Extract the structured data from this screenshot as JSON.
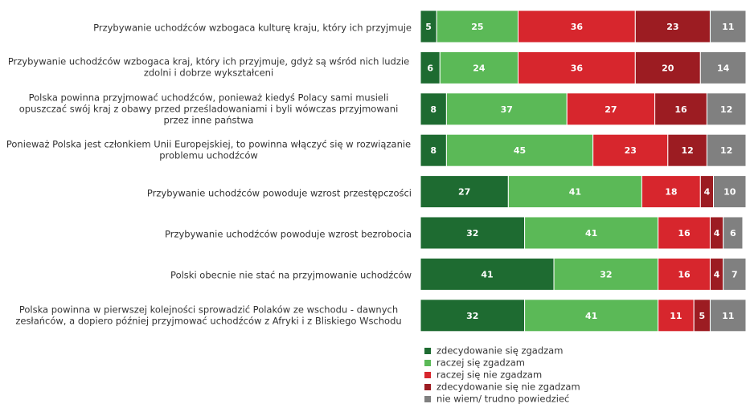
{
  "chart_data": {
    "type": "stacked-bar-horizontal",
    "categories": [
      "Przybywanie uchodźców wzbogaca kulturę kraju, który ich przyjmuje",
      "Przybywanie uchodźców wzbogaca kraj, który ich przyjmuje, gdyż są wśród nich ludzie zdolni i dobrze wykształceni",
      "Polska powinna przyjmować uchodźców, ponieważ kiedyś Polacy sami musieli opuszczać swój kraj z obawy przed prześladowaniami i byli wówczas przyjmowani przez inne państwa",
      "Ponieważ Polska jest członkiem Unii Europejskiej, to powinna włączyć się w rozwiązanie problemu uchodźców",
      "Przybywanie uchodźców powoduje wzrost przestępczości",
      "Przybywanie uchodźców powoduje wzrost bezrobocia",
      "Polski obecnie nie stać na przyjmowanie uchodźców",
      "Polska powinna w pierwszej kolejności sprowadzić Polaków ze wschodu - dawnych zesłańców, a dopiero później przyjmować uchodźców z Afryki i z Bliskiego Wschodu"
    ],
    "series": [
      {
        "name": "zdecydowanie się zgadzam",
        "color": "#1e6b31",
        "values": [
          5,
          6,
          8,
          8,
          27,
          32,
          41,
          32
        ]
      },
      {
        "name": "raczej się zgadzam",
        "color": "#5bb957",
        "values": [
          25,
          24,
          37,
          45,
          41,
          41,
          32,
          41
        ]
      },
      {
        "name": "raczej się nie zgadzam",
        "color": "#d7262d",
        "values": [
          36,
          36,
          27,
          23,
          18,
          16,
          16,
          11
        ]
      },
      {
        "name": "zdecydowanie się nie zgadzam",
        "color": "#9c1c22",
        "values": [
          23,
          20,
          16,
          12,
          4,
          4,
          4,
          5
        ]
      },
      {
        "name": "nie wiem/ trudno powiedzieć",
        "color": "#808080",
        "values": [
          11,
          14,
          12,
          12,
          10,
          6,
          7,
          11
        ]
      }
    ],
    "xlim": [
      0,
      100
    ]
  }
}
